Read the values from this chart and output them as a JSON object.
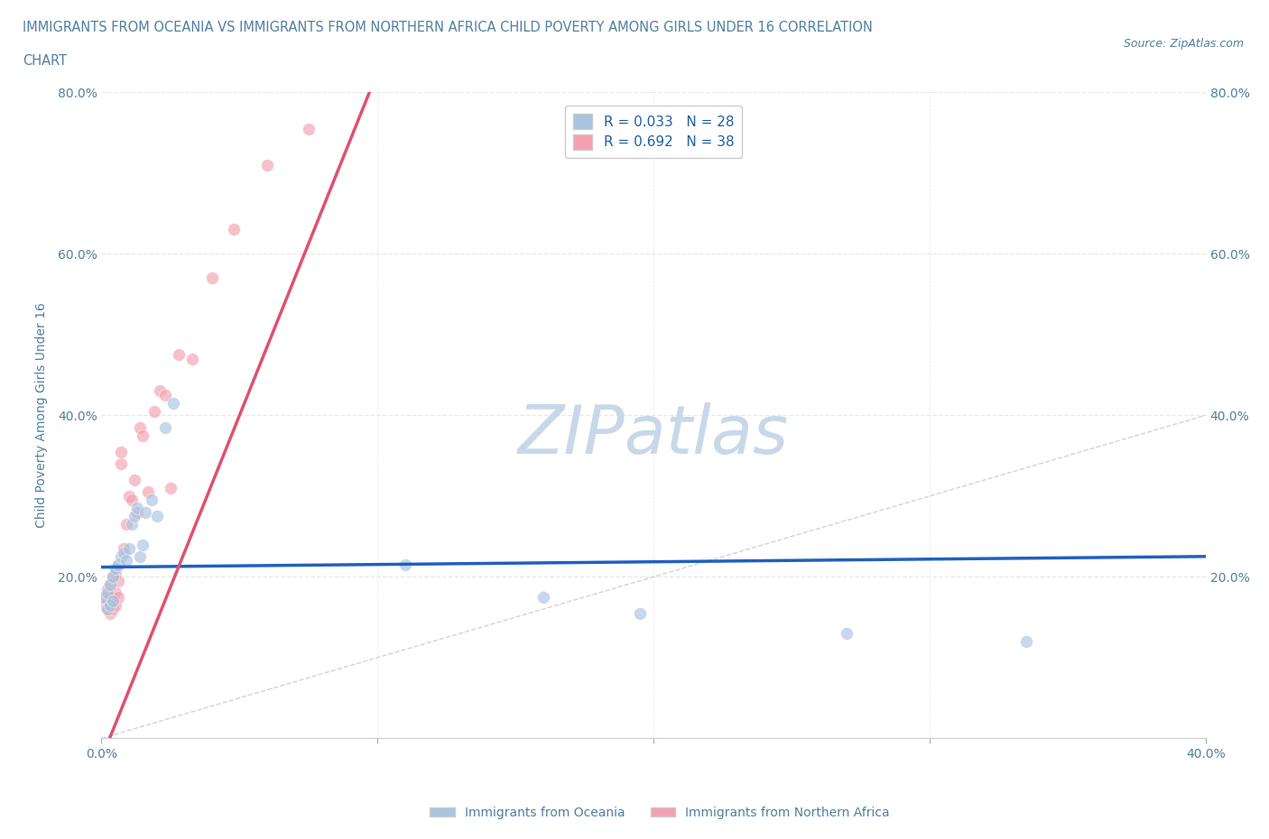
{
  "title_line1": "IMMIGRANTS FROM OCEANIA VS IMMIGRANTS FROM NORTHERN AFRICA CHILD POVERTY AMONG GIRLS UNDER 16 CORRELATION",
  "title_line2": "CHART",
  "source": "Source: ZipAtlas.com",
  "ylabel": "Child Poverty Among Girls Under 16",
  "xlim": [
    0.0,
    0.4
  ],
  "ylim": [
    0.0,
    0.8
  ],
  "xticks": [
    0.0,
    0.1,
    0.2,
    0.3,
    0.4
  ],
  "yticks": [
    0.0,
    0.2,
    0.4,
    0.6,
    0.8
  ],
  "ytick_labels_left": [
    "",
    "20.0%",
    "40.0%",
    "60.0%",
    "80.0%"
  ],
  "ytick_labels_right": [
    "",
    "20.0%",
    "40.0%",
    "60.0%",
    "80.0%"
  ],
  "xtick_labels": [
    "0.0%",
    "",
    "",
    "",
    "40.0%"
  ],
  "legend_color1": "#a8c4e0",
  "legend_color2": "#f4a0b0",
  "watermark": "ZIPatlas",
  "watermark_color": "#c8d8e8",
  "blue_dot_color": "#a8c4e0",
  "pink_dot_color": "#f4a0b0",
  "blue_line_color": "#2060c0",
  "pink_line_color": "#e05070",
  "gray_dash_color": "#c8c8c8",
  "grid_color": "#e8e8e8",
  "title_color": "#5080a0",
  "axis_color": "#5080a0",
  "oceania_x": [
    0.001,
    0.002,
    0.002,
    0.003,
    0.003,
    0.004,
    0.004,
    0.005,
    0.006,
    0.007,
    0.008,
    0.009,
    0.01,
    0.011,
    0.012,
    0.013,
    0.014,
    0.015,
    0.016,
    0.018,
    0.02,
    0.023,
    0.026,
    0.11,
    0.16,
    0.195,
    0.27,
    0.335
  ],
  "oceania_y": [
    0.175,
    0.18,
    0.16,
    0.19,
    0.165,
    0.2,
    0.17,
    0.21,
    0.215,
    0.225,
    0.23,
    0.22,
    0.235,
    0.265,
    0.275,
    0.285,
    0.225,
    0.24,
    0.28,
    0.295,
    0.275,
    0.385,
    0.415,
    0.215,
    0.175,
    0.155,
    0.13,
    0.12
  ],
  "n_africa_x": [
    0.001,
    0.001,
    0.002,
    0.002,
    0.002,
    0.003,
    0.003,
    0.003,
    0.004,
    0.004,
    0.004,
    0.005,
    0.005,
    0.005,
    0.006,
    0.006,
    0.006,
    0.007,
    0.007,
    0.008,
    0.009,
    0.01,
    0.011,
    0.012,
    0.013,
    0.014,
    0.015,
    0.017,
    0.019,
    0.021,
    0.023,
    0.025,
    0.028,
    0.033,
    0.04,
    0.048,
    0.06,
    0.075
  ],
  "n_africa_y": [
    0.175,
    0.165,
    0.185,
    0.17,
    0.16,
    0.19,
    0.175,
    0.155,
    0.2,
    0.175,
    0.16,
    0.205,
    0.18,
    0.165,
    0.215,
    0.195,
    0.175,
    0.34,
    0.355,
    0.235,
    0.265,
    0.3,
    0.295,
    0.32,
    0.28,
    0.385,
    0.375,
    0.305,
    0.405,
    0.43,
    0.425,
    0.31,
    0.475,
    0.47,
    0.57,
    0.63,
    0.71,
    0.755
  ],
  "dot_size": 100,
  "dot_alpha": 0.65,
  "blue_line_slope": 0.033,
  "blue_line_intercept": 0.212,
  "pink_line_slope": 8.5,
  "pink_line_intercept": -0.025,
  "line_width": 2.5
}
